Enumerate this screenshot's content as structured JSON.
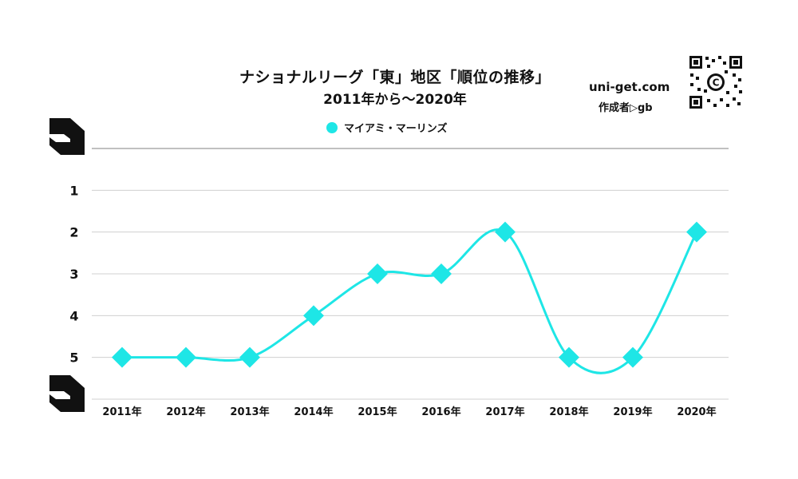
{
  "chart_data": {
    "type": "line",
    "title": "ナショナルリーグ「東」地区「順位の推移」",
    "subtitle": "2011年から～2020年",
    "categories": [
      "2011年",
      "2012年",
      "2013年",
      "2014年",
      "2015年",
      "2016年",
      "2017年",
      "2018年",
      "2019年",
      "2020年"
    ],
    "series": [
      {
        "name": "マイアミ・マーリンズ",
        "values": [
          5,
          5,
          5,
          4,
          3,
          3,
          2,
          5,
          5,
          2
        ],
        "color": "#1ee6e6"
      }
    ],
    "y_ticks": [
      1,
      2,
      3,
      4,
      5
    ],
    "ylim": [
      0,
      6
    ],
    "y_reversed": true,
    "marker": "diamond",
    "smooth": true,
    "grid": true,
    "legend_position": "top-center"
  },
  "branding": {
    "site": "uni-get.com",
    "author": "作成者▷gb"
  }
}
